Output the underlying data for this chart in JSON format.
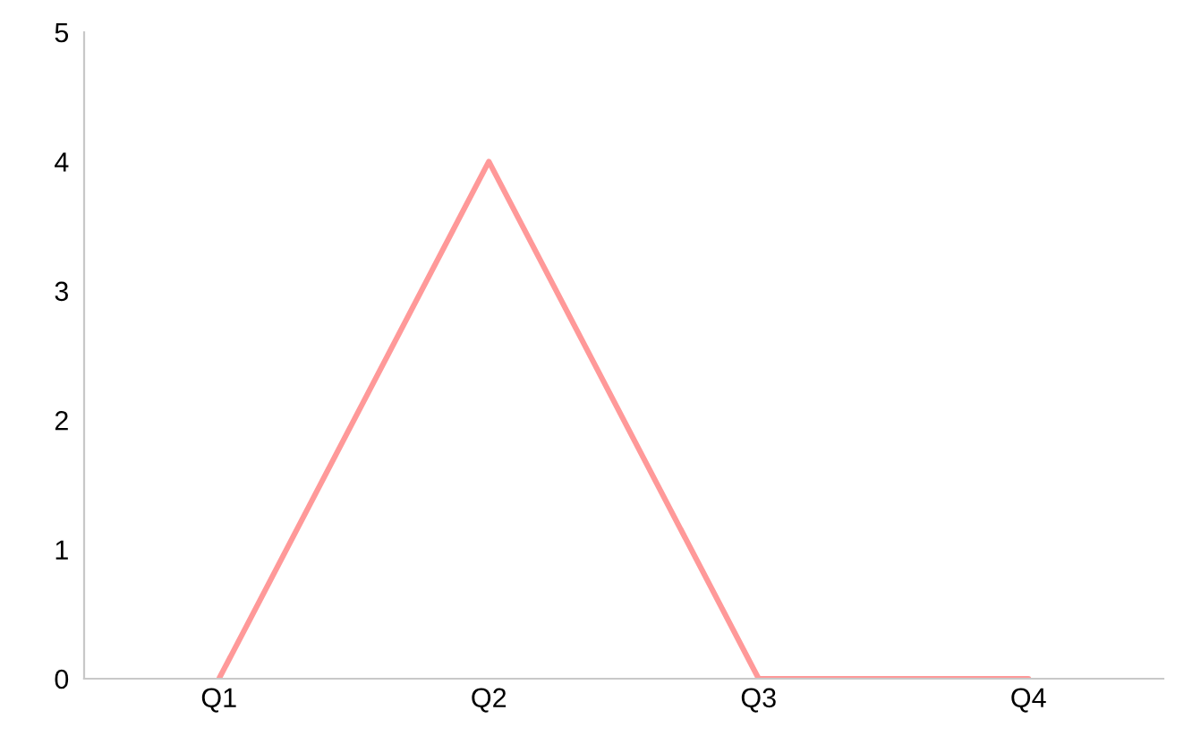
{
  "chart_data": {
    "type": "line",
    "categories": [
      "Q1",
      "Q2",
      "Q3",
      "Q4"
    ],
    "series": [
      {
        "color": "#ff9999",
        "values": [
          0,
          4,
          0,
          0
        ]
      }
    ],
    "ylim": [
      0,
      5
    ],
    "yticks": [
      0,
      1,
      2,
      3,
      4,
      5
    ],
    "grid": false,
    "legend": false,
    "marker": "none",
    "line_style": "solid"
  }
}
